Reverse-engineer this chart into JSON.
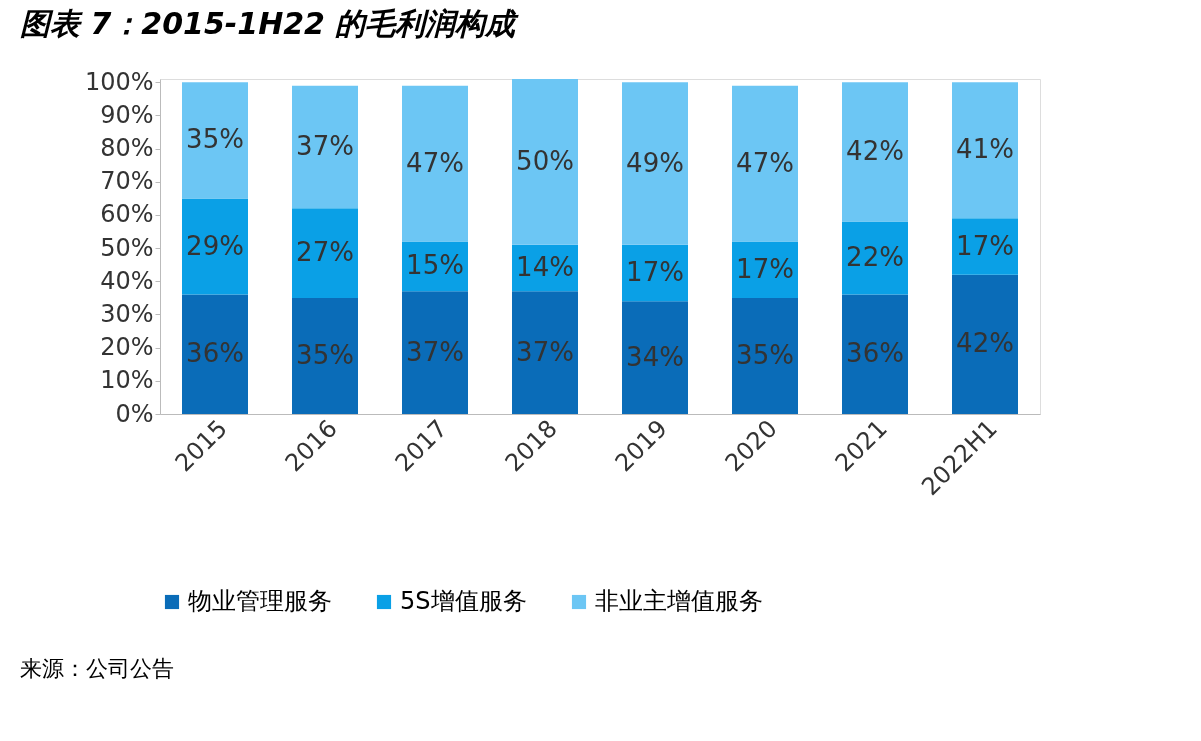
{
  "chart_data": {
    "type": "bar",
    "stacked": true,
    "title": "图表 7：2015-1H22 的毛利润构成",
    "categories": [
      "2015",
      "2016",
      "2017",
      "2018",
      "2019",
      "2020",
      "2021",
      "2022H1"
    ],
    "series": [
      {
        "name": "物业管理服务",
        "color": "#0a6cb8",
        "values": [
          36,
          35,
          37,
          37,
          34,
          35,
          36,
          42
        ],
        "value_labels": [
          "36%",
          "35%",
          "37%",
          "37%",
          "34%",
          "35%",
          "36%",
          "42%"
        ]
      },
      {
        "name": "5S增值服务",
        "color": "#0aa0e6",
        "values": [
          29,
          27,
          15,
          14,
          17,
          17,
          22,
          17
        ],
        "value_labels": [
          "29%",
          "27%",
          "15%",
          "14%",
          "17%",
          "17%",
          "22%",
          "17%"
        ]
      },
      {
        "name": "非业主增值服务",
        "color": "#6cc6f4",
        "values": [
          35,
          37,
          47,
          50,
          49,
          47,
          42,
          41
        ],
        "value_labels": [
          "35%",
          "37%",
          "47%",
          "50%",
          "49%",
          "47%",
          "42%",
          "41%"
        ]
      }
    ],
    "ylim": [
      0,
      101
    ],
    "yticks": [
      {
        "value": 0,
        "label": "0%"
      },
      {
        "value": 10,
        "label": "10%"
      },
      {
        "value": 20,
        "label": "20%"
      },
      {
        "value": 30,
        "label": "30%"
      },
      {
        "value": 40,
        "label": "40%"
      },
      {
        "value": 50,
        "label": "50%"
      },
      {
        "value": 60,
        "label": "60%"
      },
      {
        "value": 70,
        "label": "70%"
      },
      {
        "value": 80,
        "label": "80%"
      },
      {
        "value": 90,
        "label": "90%"
      },
      {
        "value": 100,
        "label": "100%"
      }
    ],
    "grid": false,
    "legend": "bottom",
    "annotations": [
      "来源：公司公告"
    ]
  }
}
